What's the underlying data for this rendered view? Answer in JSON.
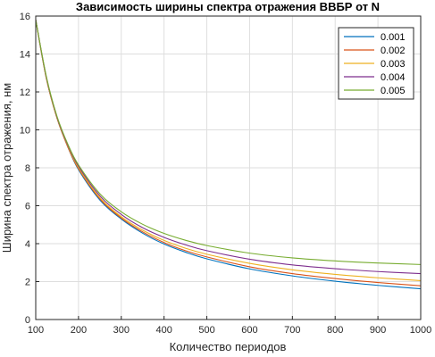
{
  "chart_data": {
    "type": "line",
    "title": "Зависимость ширины спектра отражения ВВБР от N",
    "xlabel": "Количество периодов",
    "ylabel": "Ширина спектра отражения, нм",
    "xlim": [
      100,
      1000
    ],
    "ylim": [
      0,
      16
    ],
    "xticks": [
      "100",
      "200",
      "300",
      "400",
      "500",
      "600",
      "700",
      "800",
      "900",
      "1000"
    ],
    "yticks": [
      "0",
      "2",
      "4",
      "6",
      "8",
      "10",
      "12",
      "14",
      "16"
    ],
    "grid": true,
    "legend_position": "top-right",
    "x": [
      100,
      125,
      150,
      175,
      200,
      250,
      300,
      350,
      400,
      450,
      500,
      600,
      700,
      800,
      900,
      1000
    ],
    "series": [
      {
        "name": "0.001",
        "color": "#0072BD",
        "values": [
          15.8,
          12.7,
          10.6,
          9.1,
          7.9,
          6.3,
          5.3,
          4.55,
          3.98,
          3.55,
          3.2,
          2.67,
          2.3,
          2.02,
          1.8,
          1.62
        ]
      },
      {
        "name": "0.002",
        "color": "#D95319",
        "values": [
          15.8,
          12.7,
          10.6,
          9.1,
          7.95,
          6.36,
          5.35,
          4.62,
          4.06,
          3.63,
          3.3,
          2.78,
          2.42,
          2.16,
          1.95,
          1.78
        ]
      },
      {
        "name": "0.003",
        "color": "#EDB120",
        "values": [
          15.8,
          12.7,
          10.6,
          9.15,
          8.0,
          6.42,
          5.42,
          4.71,
          4.17,
          3.76,
          3.44,
          2.96,
          2.62,
          2.38,
          2.2,
          2.05
        ]
      },
      {
        "name": "0.004",
        "color": "#7E2F8E",
        "values": [
          15.8,
          12.75,
          10.65,
          9.2,
          8.08,
          6.52,
          5.54,
          4.84,
          4.33,
          3.94,
          3.63,
          3.18,
          2.88,
          2.68,
          2.53,
          2.42
        ]
      },
      {
        "name": "0.005",
        "color": "#77AC30",
        "values": [
          15.8,
          12.8,
          10.7,
          9.25,
          8.15,
          6.63,
          5.68,
          5.02,
          4.54,
          4.18,
          3.9,
          3.5,
          3.25,
          3.09,
          2.98,
          2.9
        ]
      }
    ]
  }
}
